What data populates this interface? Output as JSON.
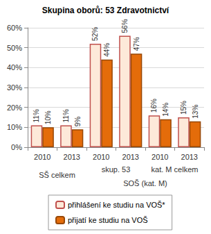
{
  "chart_data": {
    "type": "bar",
    "title": "Skupina oborů: 53 Zdravotnictví",
    "categories": [
      "2010",
      "2013",
      "2010",
      "2013",
      "2010",
      "2013"
    ],
    "category_groups": [
      "SŠ celkem",
      "SŠ celkem",
      "skup. 53",
      "skup. 53",
      "kat. M celkem",
      "kat. M celkem"
    ],
    "category_supergroups": [
      null,
      null,
      "SOŠ (kat. M)",
      "SOŠ (kat. M)",
      "SOŠ (kat. M)",
      "SOŠ (kat. M)"
    ],
    "series": [
      {
        "name": "přihlášení ke studiu na VOŠ*",
        "color": "#fde9d9",
        "values": [
          11,
          11,
          52,
          56,
          16,
          15
        ],
        "value_labels": [
          "11%",
          "11%",
          "52%",
          "56%",
          "16%",
          "15%"
        ]
      },
      {
        "name": "přijatí ke studiu na VOŠ",
        "color": "#e46c0a",
        "values": [
          10,
          9,
          44,
          47,
          14,
          13
        ],
        "value_labels": [
          "10%",
          "9%",
          "44%",
          "47%",
          "14%",
          "13%"
        ]
      }
    ],
    "ylim": [
      0,
      60
    ],
    "yticks": [
      {
        "value": 0,
        "label": "0%"
      },
      {
        "value": 10,
        "label": "10%"
      },
      {
        "value": 20,
        "label": "20%"
      },
      {
        "value": 30,
        "label": "30%"
      },
      {
        "value": 40,
        "label": "40%"
      },
      {
        "value": 50,
        "label": "50%"
      },
      {
        "value": 60,
        "label": "60%"
      }
    ],
    "grid": true,
    "legend": "bottom",
    "data_labels": true
  }
}
